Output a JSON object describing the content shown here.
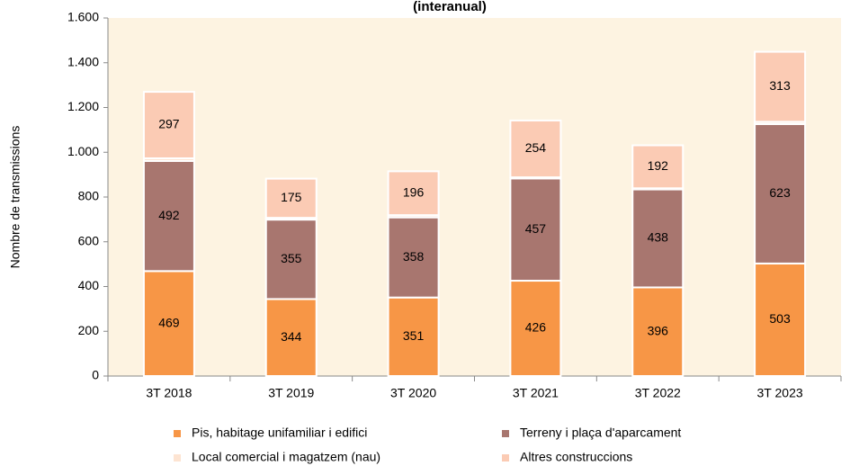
{
  "chart_data": {
    "type": "stacked_bar",
    "title": "(interanual)",
    "ylabel": "Nombre de transmissions",
    "categories": [
      "3T 2018",
      "3T 2019",
      "3T 2020",
      "3T 2021",
      "3T 2022",
      "3T 2023"
    ],
    "series": [
      {
        "name": "Pis, habitage unifamiliar i edifici",
        "color": "#f79646",
        "values": [
          469,
          344,
          351,
          426,
          396,
          503
        ]
      },
      {
        "name": "Terreny i plaça d'aparcament",
        "color": "#a8766f",
        "values": [
          492,
          355,
          358,
          457,
          438,
          623
        ]
      },
      {
        "name": "Local comercial i magatzem (nau)",
        "color": "#fde4d2",
        "values": [
          12,
          8,
          10,
          5,
          5,
          10
        ]
      },
      {
        "name": "Altres construccions",
        "color": "#fbcbb4",
        "values": [
          297,
          175,
          196,
          254,
          192,
          313
        ]
      }
    ],
    "labeled_series": [
      0,
      1,
      3
    ],
    "ylim": [
      0,
      1600
    ],
    "yticks": [
      0,
      200,
      400,
      600,
      800,
      {
        "value": 1000,
        "label": "1.000"
      },
      {
        "value": 1200,
        "label": "1.200"
      },
      {
        "value": 1400,
        "label": "1.400"
      },
      {
        "value": 1600,
        "label": "1.600"
      }
    ]
  }
}
